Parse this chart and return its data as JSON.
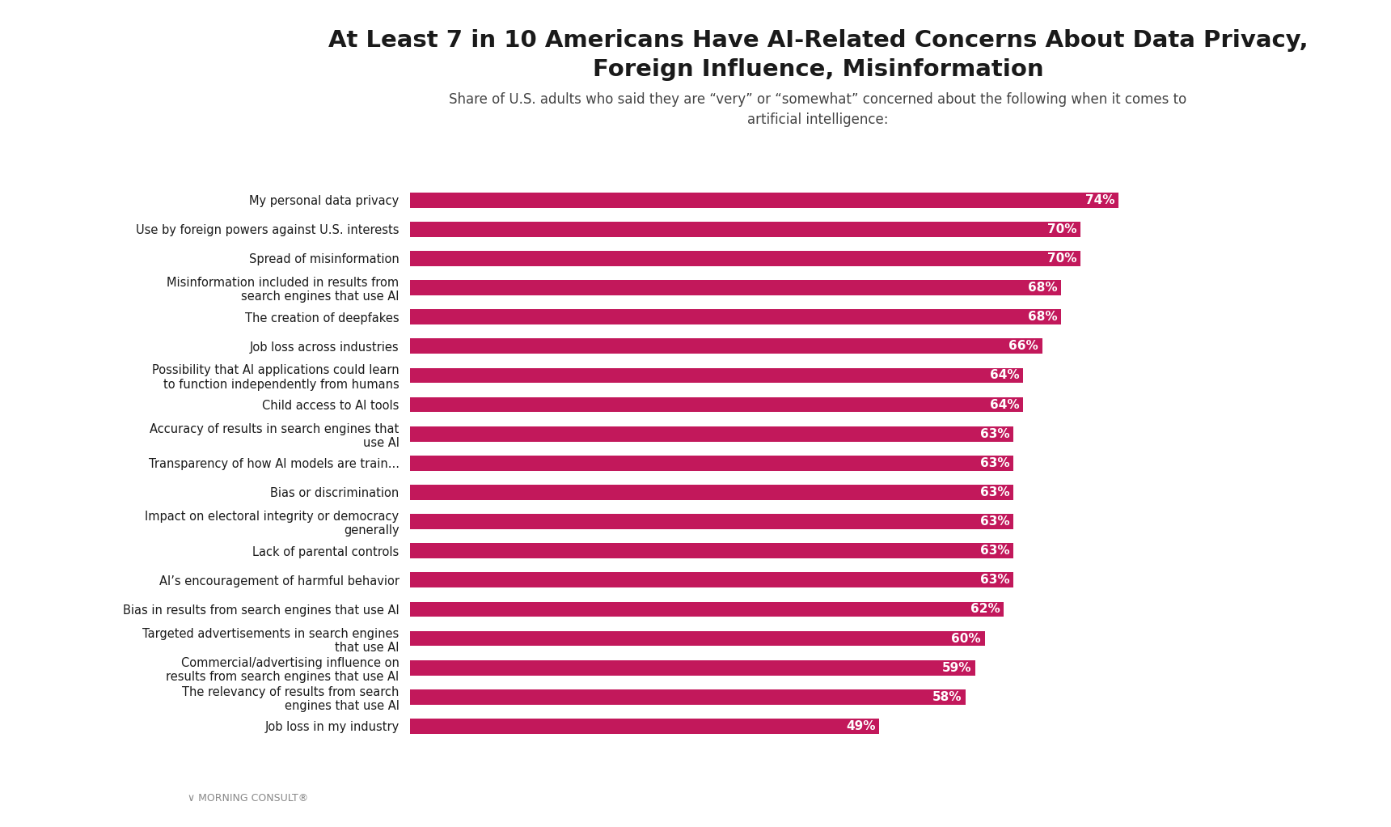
{
  "title_line1": "At Least 7 in 10 Americans Have AI-Related Concerns About Data Privacy,",
  "title_line2": "Foreign Influence, Misinformation",
  "subtitle_line1": "Share of U.S. adults who said they are “very” or “somewhat” concerned about the following when it comes to",
  "subtitle_line2": "artificial intelligence:",
  "categories": [
    "My personal data privacy",
    "Use by foreign powers against U.S. interests",
    "Spread of misinformation",
    "Misinformation included in results from\nsearch engines that use AI",
    "The creation of deepfakes",
    "Job loss across industries",
    "Possibility that AI applications could learn\nto function independently from humans",
    "Child access to AI tools",
    "Accuracy of results in search engines that\nuse AI",
    "Transparency of how AI models are train...",
    "Bias or discrimination",
    "Impact on electoral integrity or democracy\ngenerally",
    "Lack of parental controls",
    "AI’s encouragement of harmful behavior",
    "Bias in results from search engines that use AI",
    "Targeted advertisements in search engines\nthat use AI",
    "Commercial/advertising influence on\nresults from search engines that use AI",
    "The relevancy of results from search\nengines that use AI",
    "Job loss in my industry"
  ],
  "values": [
    74,
    70,
    70,
    68,
    68,
    66,
    64,
    64,
    63,
    63,
    63,
    63,
    63,
    63,
    62,
    60,
    59,
    58,
    49
  ],
  "bar_color": "#C2185B",
  "bg_color": "#FFFFFF",
  "label_color": "#FFFFFF",
  "title_color": "#1a1a1a",
  "subtitle_color": "#444444",
  "footer_color": "#888888",
  "bar_label_fontsize": 11,
  "category_fontsize": 10.5,
  "title_fontsize": 21,
  "subtitle_fontsize": 12,
  "xlim": [
    0,
    85
  ],
  "footer_text": "∨ MORNING CONSULT®"
}
